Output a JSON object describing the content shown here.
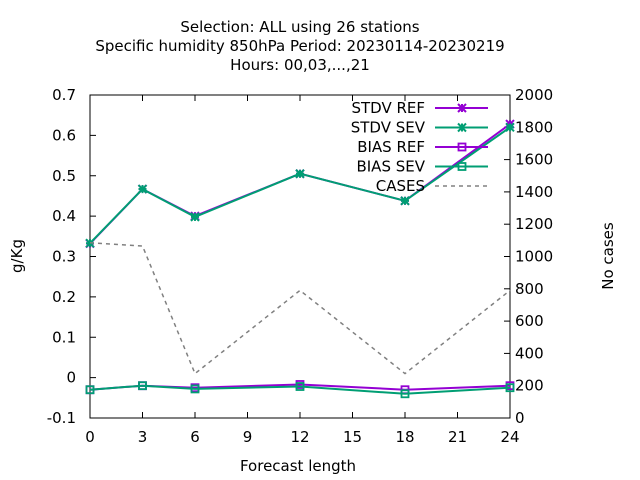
{
  "chart_data": {
    "type": "line",
    "title_lines": [
      "Selection: ALL using    26 stations",
      "Specific humidity 850hPa   Period: 20230114-20230219",
      "Hours:  00,03,...,21"
    ],
    "xlabel": "Forecast length",
    "ylabel": "g/Kg",
    "y2label": "No cases",
    "x": [
      0,
      3,
      6,
      12,
      18,
      24
    ],
    "x_ticks": [
      "0",
      "3",
      "6",
      "9",
      "12",
      "15",
      "18",
      "21",
      "24"
    ],
    "x_tick_values": [
      0,
      3,
      6,
      9,
      12,
      15,
      18,
      21,
      24
    ],
    "xlim": [
      0,
      24
    ],
    "ylim": [
      -0.1,
      0.7
    ],
    "y_ticks": [
      "0.7",
      "0.6",
      "0.5",
      "0.4",
      "0.3",
      "0.2",
      "0.1",
      "0",
      "-0.1"
    ],
    "y_tick_values": [
      0.7,
      0.6,
      0.5,
      0.4,
      0.3,
      0.2,
      0.1,
      0,
      -0.1
    ],
    "y2lim": [
      0,
      2000
    ],
    "y2_ticks": [
      "2000",
      "1800",
      "1600",
      "1400",
      "1200",
      "1000",
      "800",
      "600",
      "400",
      "200",
      "0"
    ],
    "y2_tick_values": [
      2000,
      1800,
      1600,
      1400,
      1200,
      1000,
      800,
      600,
      400,
      200,
      0
    ],
    "grid": false,
    "legend_position": "top-right",
    "series": [
      {
        "name": "STDV REF",
        "axis": "y",
        "color": "#9400d3",
        "marker": "star",
        "values": [
          0.332,
          0.467,
          0.4,
          0.505,
          0.438,
          0.628
        ]
      },
      {
        "name": "STDV SEV",
        "axis": "y",
        "color": "#009e73",
        "marker": "star",
        "values": [
          0.333,
          0.467,
          0.398,
          0.505,
          0.438,
          0.62
        ]
      },
      {
        "name": "BIAS REF",
        "axis": "y",
        "color": "#9400d3",
        "marker": "square",
        "values": [
          -0.03,
          -0.02,
          -0.025,
          -0.017,
          -0.03,
          -0.02
        ]
      },
      {
        "name": "BIAS SEV",
        "axis": "y",
        "color": "#009e73",
        "marker": "square",
        "values": [
          -0.03,
          -0.02,
          -0.028,
          -0.022,
          -0.04,
          -0.025
        ]
      },
      {
        "name": "CASES",
        "axis": "y2",
        "color": "#808080",
        "marker": "none",
        "dashed": true,
        "values": [
          1085,
          1065,
          275,
          790,
          275,
          790
        ]
      }
    ]
  }
}
